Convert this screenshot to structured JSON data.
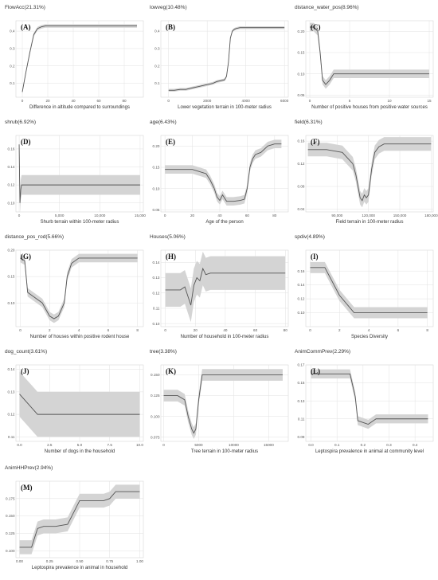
{
  "chart_data": [
    {
      "type": "line",
      "letter": "(A)",
      "title": "FlowAcc(21.31%)",
      "xlabel": "Difference in altitude compared to surroundings",
      "xlim": [
        -5,
        95
      ],
      "ylim": [
        0.02,
        0.46
      ],
      "xticks": [
        0,
        20,
        40,
        60,
        80
      ],
      "xticklabels": [
        "0",
        "20",
        "40",
        "60",
        "80"
      ],
      "yticks": [
        0.1,
        0.2,
        0.3,
        0.4
      ],
      "yticklabels": [
        "0.1",
        "0.2",
        "0.3",
        "0.4"
      ],
      "x": [
        0,
        1,
        3,
        6,
        9,
        12,
        15,
        18,
        25,
        40,
        60,
        90
      ],
      "y": [
        0.05,
        0.09,
        0.17,
        0.28,
        0.38,
        0.415,
        0.425,
        0.43,
        0.43,
        0.43,
        0.43,
        0.43
      ],
      "band": 0.01
    },
    {
      "type": "line",
      "letter": "(B)",
      "title": "lowveg(10.48%)",
      "xlabel": "Lower vegetation terrain in 100-meter radius",
      "xlim": [
        -400,
        6200
      ],
      "ylim": [
        0.02,
        0.46
      ],
      "xticks": [
        0,
        2000,
        4000,
        6000
      ],
      "xticklabels": [
        "0",
        "2000",
        "4000",
        "6000"
      ],
      "yticks": [
        0.1,
        0.2,
        0.3,
        0.4
      ],
      "yticklabels": [
        "0.1",
        "0.2",
        "0.3",
        "0.4"
      ],
      "x": [
        0,
        300,
        600,
        900,
        1100,
        1300,
        1500,
        1700,
        1900,
        2100,
        2300,
        2500,
        2700,
        2900,
        3000,
        3100,
        3200,
        3300,
        3400,
        3500,
        3700,
        4000,
        5000,
        6000
      ],
      "y": [
        0.06,
        0.06,
        0.065,
        0.065,
        0.07,
        0.075,
        0.08,
        0.085,
        0.09,
        0.095,
        0.1,
        0.11,
        0.115,
        0.12,
        0.14,
        0.22,
        0.36,
        0.4,
        0.41,
        0.415,
        0.42,
        0.42,
        0.42,
        0.42
      ],
      "band": 0.008
    },
    {
      "type": "line",
      "letter": "(C)",
      "title": "distance_water_pos(8.96%)",
      "xlabel": "Number of positive houses from positive water sources",
      "xlim": [
        -0.5,
        15.5
      ],
      "ylim": [
        0.045,
        0.225
      ],
      "xticks": [
        0,
        5,
        10,
        15
      ],
      "xticklabels": [
        "0",
        "5",
        "10",
        "15"
      ],
      "yticks": [
        0.05,
        0.1,
        0.15,
        0.2
      ],
      "yticklabels": [
        "0.05",
        "0.10",
        "0.15",
        "0.20"
      ],
      "x": [
        0,
        0.5,
        1.0,
        1.3,
        1.6,
        2.0,
        2.5,
        3,
        5,
        10,
        15
      ],
      "y": [
        0.21,
        0.21,
        0.2,
        0.15,
        0.085,
        0.075,
        0.085,
        0.1,
        0.1,
        0.1,
        0.1
      ],
      "band": 0.01
    },
    {
      "type": "line",
      "letter": "(D)",
      "title": "shrub(6.92%)",
      "xlabel": "Shurb terrain within 100-meter radius",
      "xlim": [
        -400,
        15400
      ],
      "ylim": [
        0.09,
        0.175
      ],
      "xticks": [
        0,
        5000,
        10000,
        15000
      ],
      "xticklabels": [
        "0",
        "5,000",
        "10,000",
        "15,000"
      ],
      "yticks": [
        0.1,
        0.12,
        0.14,
        0.16
      ],
      "yticklabels": [
        "0.10",
        "0.12",
        "0.14",
        "0.16"
      ],
      "x": [
        0,
        50,
        100,
        200,
        300,
        500,
        700,
        1000,
        3000,
        6000,
        10000,
        15000
      ],
      "y": [
        0.165,
        0.13,
        0.1,
        0.115,
        0.12,
        0.12,
        0.12,
        0.12,
        0.12,
        0.12,
        0.12,
        0.12
      ],
      "band": 0.011
    },
    {
      "type": "line",
      "letter": "(E)",
      "title": "age(6.43%)",
      "xlabel": "Age of the person",
      "xlim": [
        -3,
        90
      ],
      "ylim": [
        0.045,
        0.225
      ],
      "xticks": [
        0,
        20,
        40,
        60,
        80
      ],
      "xticklabels": [
        "0",
        "20",
        "40",
        "60",
        "80"
      ],
      "yticks": [
        0.05,
        0.1,
        0.15,
        0.2
      ],
      "yticklabels": [
        "0.05",
        "0.10",
        "0.15",
        "0.20"
      ],
      "x": [
        0,
        10,
        20,
        25,
        30,
        33,
        36,
        38,
        40,
        42,
        45,
        50,
        55,
        58,
        60,
        62,
        64,
        66,
        70,
        75,
        80,
        85
      ],
      "y": [
        0.145,
        0.145,
        0.145,
        0.14,
        0.135,
        0.12,
        0.1,
        0.08,
        0.072,
        0.085,
        0.07,
        0.07,
        0.072,
        0.075,
        0.1,
        0.15,
        0.17,
        0.18,
        0.185,
        0.2,
        0.205,
        0.205
      ],
      "band": 0.01
    },
    {
      "type": "line",
      "letter": "(F)",
      "title": "field(6.31%)",
      "xlabel": "Field terrain in 100-meter radius",
      "xlim": [
        60000,
        182000
      ],
      "ylim": [
        0.035,
        0.17
      ],
      "xticks": [
        90000,
        120000,
        150000,
        180000
      ],
      "xticklabels": [
        "90,000",
        "120,000",
        "150,000",
        "180,000"
      ],
      "yticks": [
        0.04,
        0.08,
        0.12,
        0.16
      ],
      "yticklabels": [
        "0.04",
        "0.08",
        "0.12",
        "0.16"
      ],
      "x": [
        62000,
        80000,
        95000,
        100000,
        105000,
        108000,
        110000,
        112000,
        114000,
        116000,
        118000,
        120000,
        123000,
        126000,
        130000,
        135000,
        140000,
        160000,
        180000
      ],
      "y": [
        0.145,
        0.145,
        0.14,
        0.13,
        0.12,
        0.1,
        0.08,
        0.06,
        0.055,
        0.065,
        0.06,
        0.065,
        0.11,
        0.14,
        0.15,
        0.155,
        0.155,
        0.155,
        0.155
      ],
      "band": 0.012
    },
    {
      "type": "line",
      "letter": "(G)",
      "title": "distance_pos_rod(5.66%)",
      "xlabel": "Number of houses within positive rodent house",
      "xlim": [
        -0.3,
        8.4
      ],
      "ylim": [
        0.055,
        0.2
      ],
      "xticks": [
        0,
        2,
        4,
        6,
        8
      ],
      "xticklabels": [
        "0",
        "2",
        "4",
        "6",
        "8"
      ],
      "yticks": [
        0.1,
        0.15,
        0.2
      ],
      "yticklabels": [
        "0.10",
        "0.15",
        "0.20"
      ],
      "x": [
        0,
        0.3,
        0.5,
        1,
        1.5,
        2,
        2.3,
        2.6,
        3,
        3.2,
        3.5,
        4,
        5,
        6,
        7,
        8
      ],
      "y": [
        0.185,
        0.18,
        0.12,
        0.11,
        0.1,
        0.075,
        0.07,
        0.075,
        0.1,
        0.15,
        0.175,
        0.185,
        0.185,
        0.185,
        0.185,
        0.185
      ],
      "band": 0.008
    },
    {
      "type": "line",
      "letter": "(H)",
      "title": "Houses(5.06%)",
      "xlabel": "Number of household in 100-meter radius",
      "xlim": [
        -3,
        82
      ],
      "ylim": [
        0.098,
        0.148
      ],
      "xticks": [
        0,
        20,
        40,
        60,
        80
      ],
      "xticklabels": [
        "0",
        "20",
        "40",
        "60",
        "80"
      ],
      "yticks": [
        0.1,
        0.11,
        0.12,
        0.13,
        0.14
      ],
      "yticklabels": [
        "0.10",
        "0.11",
        "0.12",
        "0.13",
        "0.14"
      ],
      "x": [
        0,
        5,
        10,
        13,
        15,
        17,
        19,
        21,
        23,
        25,
        27,
        30,
        40,
        60,
        80
      ],
      "y": [
        0.122,
        0.122,
        0.122,
        0.124,
        0.118,
        0.112,
        0.125,
        0.13,
        0.128,
        0.136,
        0.132,
        0.133,
        0.133,
        0.133,
        0.133
      ],
      "band": 0.011
    },
    {
      "type": "line",
      "letter": "(I)",
      "title": "spdiv(4.89%)",
      "xlabel": "Species Diversity",
      "xlim": [
        -0.3,
        8.4
      ],
      "ylim": [
        0.08,
        0.19
      ],
      "xticks": [
        0,
        2,
        4,
        6,
        8
      ],
      "xticklabels": [
        "0",
        "2",
        "4",
        "6",
        "8"
      ],
      "yticks": [
        0.1,
        0.12,
        0.14,
        0.16
      ],
      "yticklabels": [
        "0.10",
        "0.12",
        "0.14",
        "0.16"
      ],
      "x": [
        0,
        1,
        2,
        3,
        4,
        5,
        6,
        7,
        8
      ],
      "y": [
        0.165,
        0.165,
        0.125,
        0.1,
        0.1,
        0.1,
        0.1,
        0.1,
        0.1
      ],
      "band": 0.008
    },
    {
      "type": "line",
      "letter": "(J)",
      "title": "dog_count(3.61%)",
      "xlabel": "Number of dogs in the household",
      "xlim": [
        -0.3,
        10.3
      ],
      "ylim": [
        0.108,
        0.142
      ],
      "xticks": [
        0,
        2.5,
        5,
        7.5,
        10
      ],
      "xticklabels": [
        "0.0",
        "2.5",
        "5.0",
        "7.5",
        "10.0"
      ],
      "yticks": [
        0.11,
        0.12,
        0.13,
        0.14
      ],
      "yticklabels": [
        "0.11",
        "0.12",
        "0.13",
        "0.14"
      ],
      "x": [
        0,
        0.5,
        1,
        1.5,
        2,
        3,
        5,
        7.5,
        10
      ],
      "y": [
        0.129,
        0.126,
        0.123,
        0.12,
        0.12,
        0.12,
        0.12,
        0.12,
        0.12
      ],
      "band": 0.01
    },
    {
      "type": "line",
      "letter": "(K)",
      "title": "tree(3.38%)",
      "xlabel": "Tree terrain in 100-meter radius",
      "xlim": [
        -400,
        17800
      ],
      "ylim": [
        0.07,
        0.162
      ],
      "xticks": [
        0,
        5000,
        10000,
        15000
      ],
      "xticklabels": [
        "0",
        "5000",
        "10000",
        "15000"
      ],
      "yticks": [
        0.075,
        0.1,
        0.125,
        0.15
      ],
      "yticklabels": [
        "0.075",
        "0.100",
        "0.125",
        "0.150"
      ],
      "x": [
        0,
        1000,
        2000,
        3000,
        3500,
        4000,
        4300,
        4600,
        5000,
        5500,
        6000,
        8000,
        12000,
        17000
      ],
      "y": [
        0.125,
        0.125,
        0.125,
        0.12,
        0.1,
        0.085,
        0.08,
        0.085,
        0.12,
        0.15,
        0.15,
        0.15,
        0.15,
        0.15
      ],
      "band": 0.007
    },
    {
      "type": "line",
      "letter": "(L)",
      "title": "AnimCommPrev(2.29%)",
      "xlabel": "Leptospira prevalence in animal at community level",
      "xlim": [
        -0.02,
        0.47
      ],
      "ylim": [
        0.085,
        0.17
      ],
      "xticks": [
        0,
        0.1,
        0.2,
        0.3,
        0.4
      ],
      "xticklabels": [
        "0.0",
        "0.1",
        "0.2",
        "0.3",
        "0.4"
      ],
      "yticks": [
        0.09,
        0.11,
        0.13,
        0.15,
        0.17
      ],
      "yticklabels": [
        "0.09",
        "0.11",
        "0.13",
        "0.15",
        "0.17"
      ],
      "x": [
        0,
        0.05,
        0.1,
        0.15,
        0.17,
        0.18,
        0.2,
        0.22,
        0.25,
        0.3,
        0.4,
        0.45
      ],
      "y": [
        0.16,
        0.16,
        0.16,
        0.16,
        0.135,
        0.108,
        0.106,
        0.104,
        0.11,
        0.11,
        0.11,
        0.11
      ],
      "band": 0.005
    },
    {
      "type": "line",
      "letter": "(M)",
      "title": "AnimHHPrev(2.94%)",
      "xlabel": "Leptospira prevalence in animal in household",
      "xlim": [
        -0.03,
        1.03
      ],
      "ylim": [
        0.09,
        0.2
      ],
      "xticks": [
        0,
        0.25,
        0.5,
        0.75,
        1
      ],
      "xticklabels": [
        "0.00",
        "0.25",
        "0.50",
        "0.75",
        "1.00"
      ],
      "yticks": [
        0.1,
        0.125,
        0.15,
        0.175
      ],
      "yticklabels": [
        "0.100",
        "0.125",
        "0.150",
        "0.175"
      ],
      "x": [
        0,
        0.05,
        0.1,
        0.15,
        0.2,
        0.3,
        0.4,
        0.45,
        0.5,
        0.6,
        0.7,
        0.75,
        0.8,
        0.85,
        1.0
      ],
      "y": [
        0.105,
        0.105,
        0.105,
        0.132,
        0.135,
        0.135,
        0.138,
        0.155,
        0.172,
        0.172,
        0.172,
        0.175,
        0.185,
        0.185,
        0.185
      ],
      "band": 0.01
    }
  ]
}
